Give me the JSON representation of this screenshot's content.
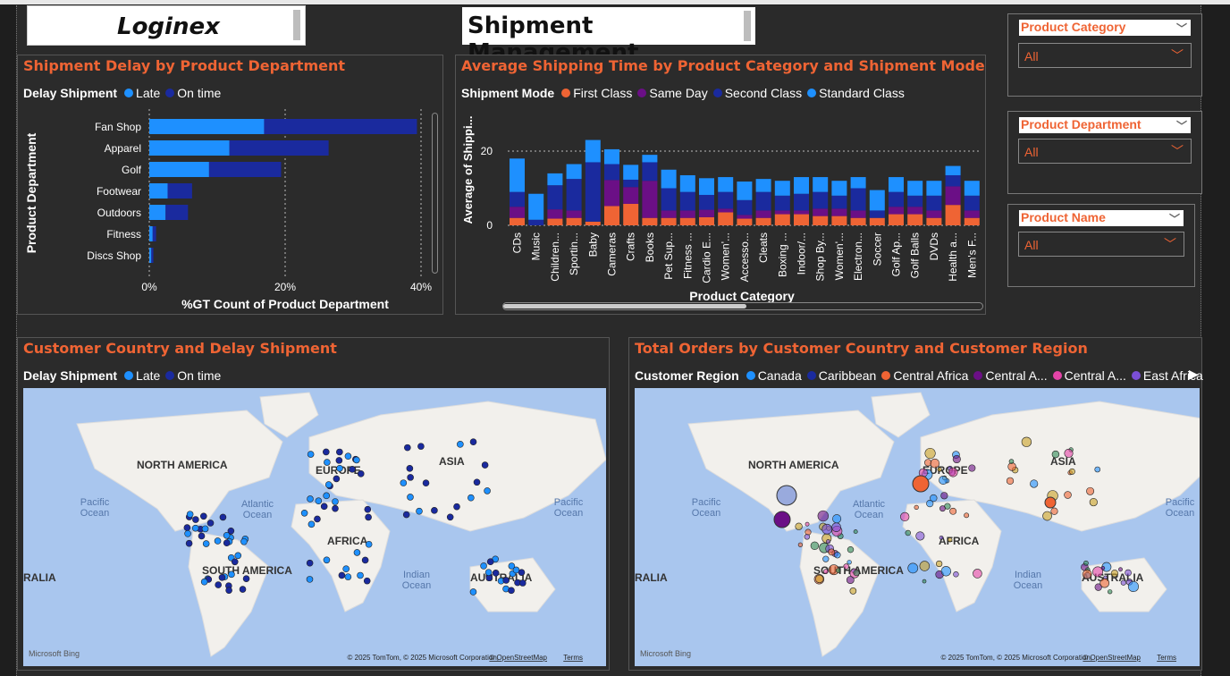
{
  "header": {
    "brand": "Loginex",
    "title": "Shipment Management"
  },
  "colors": {
    "accent": "#ef6434",
    "late": "#1e90ff",
    "on_time": "#1a2a9e"
  },
  "panels": {
    "delay_dept": {
      "title": "Shipment Delay by Product Department",
      "legend_title": "Delay Shipment",
      "legend": [
        "Late",
        "On time"
      ]
    },
    "ship_time": {
      "title": "Average Shipping Time by Product Category and Shipment Mode",
      "legend_title": "Shipment Mode",
      "legend": [
        "First Class",
        "Same Day",
        "Second Class",
        "Standard Class"
      ]
    },
    "country_delay": {
      "title": "Customer Country and Delay Shipment",
      "legend_title": "Delay Shipment",
      "legend": [
        "Late",
        "On time"
      ]
    },
    "orders_region": {
      "title": "Total Orders by Customer Country and Customer Region",
      "legend_title": "Customer Region",
      "legend": [
        "Canada",
        "Caribbean",
        "Central Africa",
        "Central A...",
        "Central A...",
        "East Africa"
      ]
    }
  },
  "slicers": [
    {
      "label": "Product Category",
      "value": "All"
    },
    {
      "label": "Product Department",
      "value": "All"
    },
    {
      "label": "Product Name",
      "value": "All"
    }
  ],
  "map": {
    "labels": [
      "NORTH AMERICA",
      "EUROPE",
      "ASIA",
      "AFRICA",
      "SOUTH AMERICA",
      "AUSTRALIA",
      "RALIA"
    ],
    "label_right": "ALIA",
    "oceans": {
      "pacific": "Pacific\nOcean",
      "atlantic": "Atlantic\nOcean",
      "indian": "Indian\nOcean"
    },
    "attribution": "© 2025 TomTom, © 2025 Microsoft Corporation,",
    "osm": "© OpenStreetMap",
    "terms": "Terms",
    "bing": "Microsoft Bing"
  },
  "chart_data": [
    {
      "type": "bar",
      "orientation": "horizontal",
      "stacked": true,
      "categories": [
        "Fan Shop",
        "Apparel",
        "Golf",
        "Footwear",
        "Outdoors",
        "Fitness",
        "Discs Shop"
      ],
      "series": [
        {
          "name": "Late",
          "values": [
            16.9,
            11.8,
            8.8,
            2.7,
            2.4,
            0.5,
            0.3
          ]
        },
        {
          "name": "On time",
          "values": [
            22.5,
            14.6,
            10.6,
            3.6,
            3.3,
            0.5,
            0.3
          ]
        }
      ],
      "xlabel": "%GT Count of Product Department",
      "ylabel": "Product Department",
      "xticks": [
        "0%",
        "20%",
        "40%"
      ],
      "xlim": [
        0,
        40
      ]
    },
    {
      "type": "bar",
      "stacked": true,
      "categories": [
        "CDs",
        "Music",
        "Children...",
        "Sportin...",
        "Baby",
        "Cameras",
        "Crafts",
        "Books",
        "Pet Sup...",
        "Fitness ...",
        "Cardio E...",
        "Women'...",
        "Accesso...",
        "Cleats",
        "Boxing ...",
        "Indoor/...",
        "Shop By...",
        "Women'...",
        "Electron...",
        "Soccer",
        "Golf Ap...",
        "Golf Balls",
        "DVDs",
        "Health a...",
        "Men's F..."
      ],
      "series": [
        {
          "name": "First Class",
          "values": [
            2.0,
            0.0,
            1.8,
            2.0,
            1.0,
            5.2,
            5.8,
            2.0,
            2.0,
            2.0,
            2.2,
            3.5,
            1.8,
            2.0,
            3.0,
            3.0,
            2.5,
            2.5,
            2.0,
            2.0,
            3.0,
            3.0,
            2.0,
            5.5,
            2.0
          ]
        },
        {
          "name": "Same Day",
          "values": [
            3.0,
            0.0,
            2.5,
            2.0,
            0.0,
            7.0,
            4.5,
            10.0,
            2.0,
            2.0,
            2.0,
            1.0,
            1.0,
            2.0,
            1.0,
            1.0,
            2.0,
            2.0,
            2.0,
            0.0,
            2.0,
            2.0,
            2.0,
            5.0,
            2.0
          ]
        },
        {
          "name": "Second Class",
          "values": [
            4.0,
            1.5,
            6.5,
            8.5,
            16.0,
            4.3,
            2.0,
            5.0,
            6.0,
            5.0,
            4.0,
            4.5,
            4.0,
            5.0,
            4.0,
            4.5,
            4.5,
            3.5,
            6.0,
            2.0,
            4.0,
            3.0,
            4.0,
            3.0,
            4.0
          ]
        },
        {
          "name": "Standard Class",
          "values": [
            9.0,
            7.0,
            3.2,
            4.0,
            6.0,
            4.0,
            4.0,
            2.0,
            5.0,
            4.5,
            4.5,
            4.0,
            5.0,
            3.5,
            4.0,
            4.5,
            4.0,
            4.0,
            3.0,
            5.5,
            4.0,
            4.0,
            4.0,
            2.5,
            4.0
          ]
        }
      ],
      "xlabel": "Product Category",
      "ylabel": "Average of Shippi...",
      "yticks": [
        "0",
        "20"
      ],
      "ylim": [
        0,
        25
      ]
    }
  ]
}
